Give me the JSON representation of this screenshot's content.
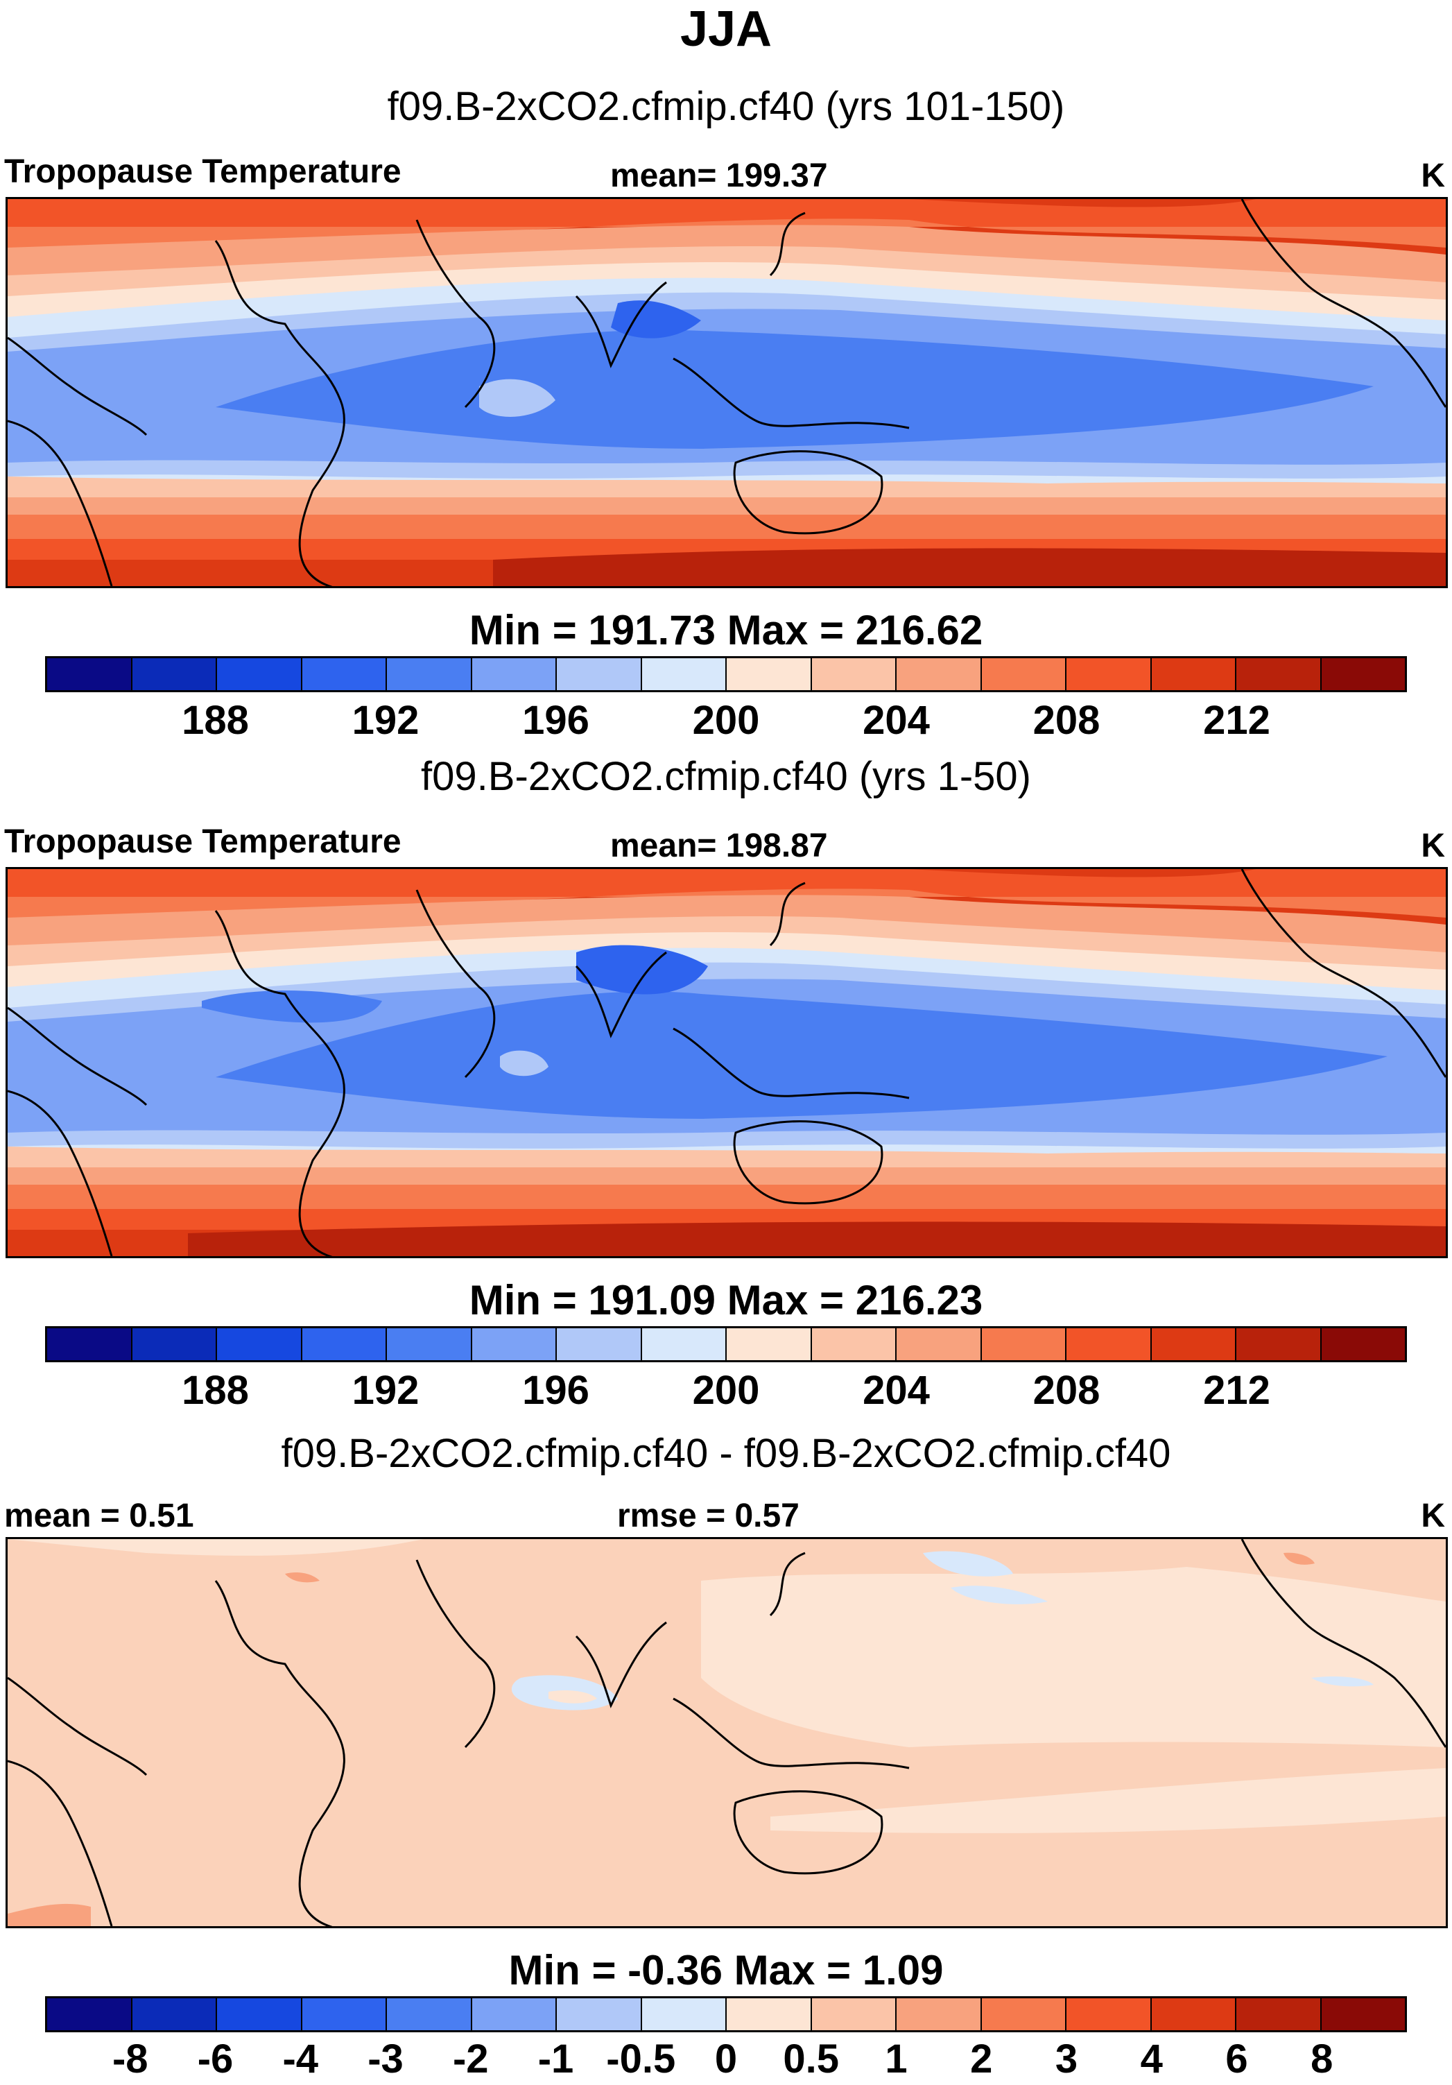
{
  "title": "JJA",
  "palette": [
    "#0a0a86",
    "#0b2bb8",
    "#1648e0",
    "#2e63ee",
    "#4a7ef2",
    "#7ca2f6",
    "#b0c8f8",
    "#d8e8fb",
    "#fde5d4",
    "#fbc4a8",
    "#f8a27e",
    "#f67a4e",
    "#f25428",
    "#dd3a14",
    "#b8220b",
    "#8a0a06"
  ],
  "panels": [
    {
      "case_title": "f09.B-2xCO2.cfmip.cf40 (yrs 101-150)",
      "left_label": "Tropopause Temperature",
      "center_label": "mean= 199.37",
      "units": "K",
      "minmax": "Min = 191.73 Max = 216.62",
      "colorbar_ticks": [
        "188",
        "192",
        "196",
        "200",
        "204",
        "208",
        "212"
      ]
    },
    {
      "case_title": "f09.B-2xCO2.cfmip.cf40 (yrs 1-50)",
      "left_label": "Tropopause Temperature",
      "center_label": "mean= 198.87",
      "units": "K",
      "minmax": "Min = 191.09 Max = 216.23",
      "colorbar_ticks": [
        "188",
        "192",
        "196",
        "200",
        "204",
        "208",
        "212"
      ]
    },
    {
      "case_title": "f09.B-2xCO2.cfmip.cf40 - f09.B-2xCO2.cfmip.cf40",
      "left_label": "mean =   0.51",
      "center_label": "rmse =   0.57",
      "units": "K",
      "minmax": "Min =  -0.36 Max =    1.09",
      "colorbar_ticks": [
        "-8",
        "-6",
        "-4",
        "-3",
        "-2",
        "-1",
        "-0.5",
        "0",
        "0.5",
        "1",
        "2",
        "3",
        "4",
        "6",
        "8"
      ]
    }
  ]
}
